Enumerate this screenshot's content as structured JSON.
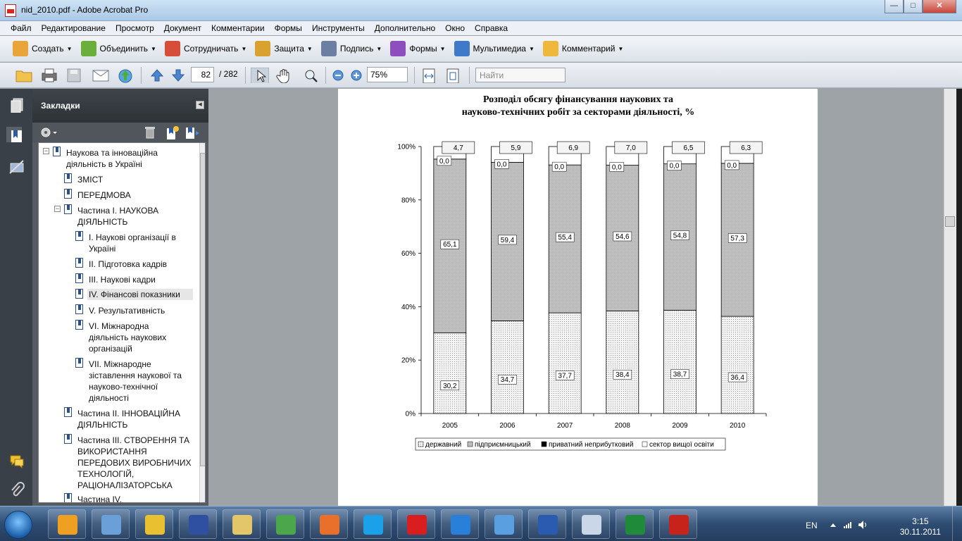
{
  "window": {
    "title": "nid_2010.pdf - Adobe Acrobat Pro"
  },
  "menu": [
    "Файл",
    "Редактирование",
    "Просмотр",
    "Документ",
    "Комментарии",
    "Формы",
    "Инструменты",
    "Дополнительно",
    "Окно",
    "Справка"
  ],
  "toolbar1": [
    {
      "label": "Создать",
      "icon": "create-icon",
      "color": "#e9a53a"
    },
    {
      "label": "Объединить",
      "icon": "combine-icon",
      "color": "#6aae3c"
    },
    {
      "label": "Сотрудничать",
      "icon": "collaborate-icon",
      "color": "#d64d3a"
    },
    {
      "label": "Защита",
      "icon": "lock-icon",
      "color": "#d9a22e"
    },
    {
      "label": "Подпись",
      "icon": "pen-icon",
      "color": "#6d7ea3"
    },
    {
      "label": "Формы",
      "icon": "forms-icon",
      "color": "#8d4fbd"
    },
    {
      "label": "Мультимедиа",
      "icon": "multimedia-icon",
      "color": "#3f79c9"
    },
    {
      "label": "Комментарий",
      "icon": "comment-icon",
      "color": "#f0b83a"
    }
  ],
  "toolbar2": {
    "page_current": "82",
    "page_total": "/ 282",
    "zoom": "75%",
    "find_placeholder": "Найти"
  },
  "bookmarks": {
    "title": "Закладки",
    "items": [
      {
        "label": "Наукова та інноваційна діяльність в Україні",
        "level": 0,
        "expanded": true
      },
      {
        "label": "ЗМІСТ",
        "level": 1
      },
      {
        "label": "ПЕРЕДМОВА",
        "level": 1
      },
      {
        "label": "Частина І. НАУКОВА ДІЯЛЬНІСТЬ",
        "level": 1,
        "expanded": true
      },
      {
        "label": "I. Наукові організації в Україні",
        "level": 2
      },
      {
        "label": "II. Підготовка кадрів",
        "level": 2
      },
      {
        "label": "III. Наукові кадри",
        "level": 2
      },
      {
        "label": "IV. Фінансові показники",
        "level": 2,
        "selected": true
      },
      {
        "label": "V. Результативність",
        "level": 2
      },
      {
        "label": "VI. Міжнародна діяльність наукових організацій",
        "level": 2
      },
      {
        "label": "VII. Міжнародне зіставлення наукової та науково-технічної діяльності",
        "level": 2
      },
      {
        "label": "Частина ІІ. ІННОВАЦІЙНА ДІЯЛЬНІСТЬ",
        "level": 1
      },
      {
        "label": "Частина ІІІ. СТВОРЕННЯ ТА ВИКОРИСТАННЯ ПЕРЕДОВИХ ВИРОБНИЧИХ ТЕХНОЛОГІЙ, РАЦІОНАЛІЗАТОРСЬКА",
        "level": 1
      },
      {
        "label": "Частина IV.",
        "level": 1
      }
    ]
  },
  "chart_data": {
    "type": "bar",
    "stacked": true,
    "title": "Розподіл обсягу фінансування наукових та",
    "title_line2": "науково-технічних робіт за секторами діяльності, %",
    "categories": [
      "2005",
      "2006",
      "2007",
      "2008",
      "2009",
      "2010"
    ],
    "yticks": [
      "0%",
      "20%",
      "40%",
      "60%",
      "80%",
      "100%"
    ],
    "ylim": [
      0,
      100
    ],
    "series": [
      {
        "name": "державний",
        "values": [
          30.2,
          34.7,
          37.7,
          38.4,
          38.7,
          36.4
        ],
        "labels": [
          "30,2",
          "34,7",
          "37,7",
          "38,4",
          "38,7",
          "36,4"
        ],
        "color": "#f2f2f2"
      },
      {
        "name": "підприємницький",
        "values": [
          65.1,
          59.4,
          55.4,
          54.6,
          54.8,
          57.3
        ],
        "labels": [
          "65,1",
          "59,4",
          "55,4",
          "54,6",
          "54,8",
          "57,3"
        ],
        "color": "#c4c4c4"
      },
      {
        "name": "приватний неприбутковий",
        "values": [
          0.0,
          0.0,
          0.0,
          0.0,
          0.0,
          0.0
        ],
        "labels": [
          "0,0",
          "0,0",
          "0,0",
          "0,0",
          "0,0",
          "0,0"
        ],
        "color": "#000000"
      },
      {
        "name": "сектор вищої освіти",
        "values": [
          4.7,
          5.9,
          6.9,
          7.0,
          6.5,
          6.3
        ],
        "labels": [
          "4,7",
          "5,9",
          "6,9",
          "7,0",
          "6,5",
          "6,3"
        ],
        "color": "#ffffff"
      }
    ],
    "legend": "bottom"
  },
  "taskbar": {
    "items": [
      "aimp-icon",
      "media-player-icon",
      "winrar-icon",
      "save-icon",
      "explorer-icon",
      "spreadsheet-icon",
      "firefox-icon",
      "skype-icon",
      "opera-icon",
      "internet-explorer-icon",
      "globe-icon",
      "word-icon",
      "calculator-icon",
      "excel-icon",
      "acrobat-icon"
    ],
    "lang": "EN",
    "time": "3:15",
    "date": "30.11.2011"
  }
}
